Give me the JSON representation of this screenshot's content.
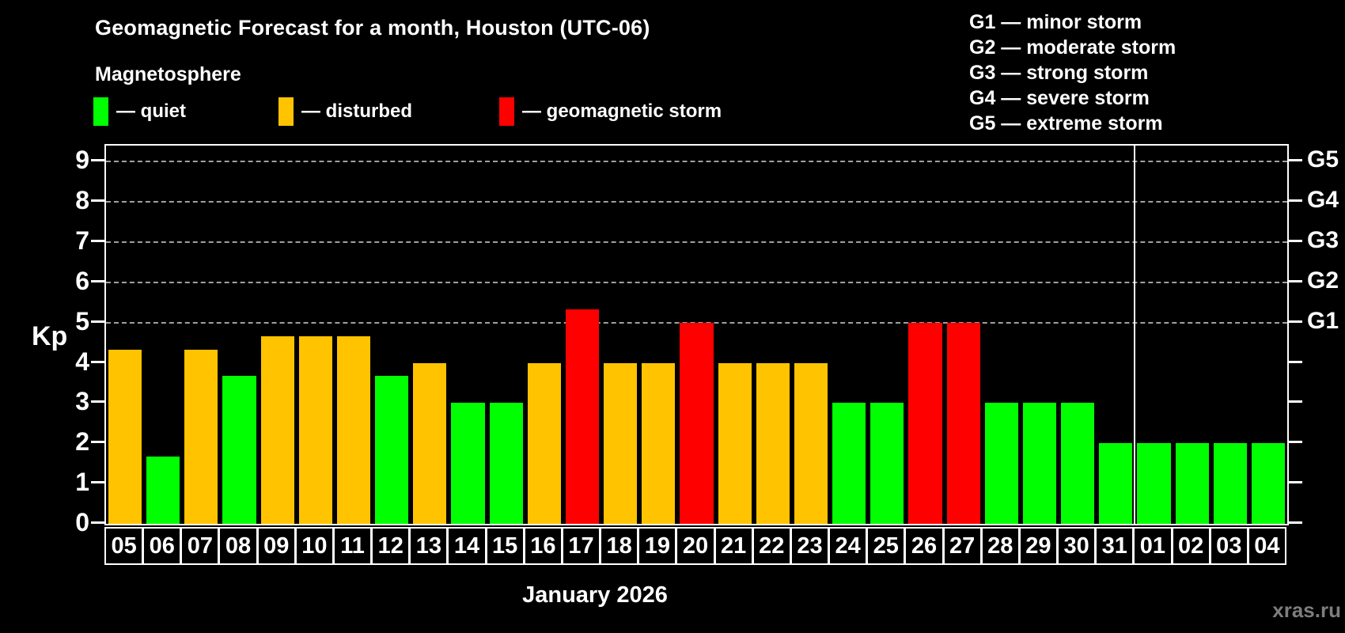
{
  "header": {
    "title": "Geomagnetic Forecast for a month, Houston (UTC-06)",
    "subtitle": "Magnetosphere"
  },
  "legend": [
    {
      "name": "quiet",
      "label": "— quiet",
      "color": "#00ff00"
    },
    {
      "name": "disturbed",
      "label": "— disturbed",
      "color": "#ffc300"
    },
    {
      "name": "storm",
      "label": "— geomagnetic storm",
      "color": "#ff0000"
    }
  ],
  "storm_scale_lines": [
    "G1 — minor storm",
    "G2 — moderate storm",
    "G3 — strong storm",
    "G4 — severe storm",
    "G5 — extreme storm"
  ],
  "colors": {
    "quiet": "#00ff00",
    "disturbed": "#ffc300",
    "storm": "#ff0000",
    "grid": "#a0a0a0",
    "axis": "#ffffff",
    "watermark": "#7d7d7d",
    "background": "#000000"
  },
  "watermark": "xras.ru",
  "chart_data": {
    "type": "bar",
    "title": "Geomagnetic Forecast for a month, Houston (UTC-06)",
    "xlabel": "January 2026",
    "ylabel": "Kp",
    "ylim": [
      0,
      9.4
    ],
    "yticks": [
      0,
      1,
      2,
      3,
      4,
      5,
      6,
      7,
      8,
      9
    ],
    "gridlines_at": [
      5,
      6,
      7,
      8,
      9
    ],
    "right_axis_labels": [
      {
        "kp": 5,
        "label": "G1"
      },
      {
        "kp": 6,
        "label": "G2"
      },
      {
        "kp": 7,
        "label": "G3"
      },
      {
        "kp": 8,
        "label": "G4"
      },
      {
        "kp": 9,
        "label": "G5"
      }
    ],
    "categories": [
      "05",
      "06",
      "07",
      "08",
      "09",
      "10",
      "11",
      "12",
      "13",
      "14",
      "15",
      "16",
      "17",
      "18",
      "19",
      "20",
      "21",
      "22",
      "23",
      "24",
      "25",
      "26",
      "27",
      "28",
      "29",
      "30",
      "31",
      "01",
      "02",
      "03",
      "04"
    ],
    "values": [
      4.33,
      1.67,
      4.33,
      3.67,
      4.67,
      4.67,
      4.67,
      3.67,
      4,
      3,
      3,
      4,
      5.33,
      4,
      4,
      5,
      4,
      4,
      4,
      3,
      3,
      5,
      5,
      3,
      3,
      3,
      2,
      2,
      2,
      2,
      2
    ],
    "levels": [
      "disturbed",
      "quiet",
      "disturbed",
      "quiet",
      "disturbed",
      "disturbed",
      "disturbed",
      "quiet",
      "disturbed",
      "quiet",
      "quiet",
      "disturbed",
      "storm",
      "disturbed",
      "disturbed",
      "storm",
      "disturbed",
      "disturbed",
      "disturbed",
      "quiet",
      "quiet",
      "storm",
      "storm",
      "quiet",
      "quiet",
      "quiet",
      "quiet",
      "quiet",
      "quiet",
      "quiet",
      "quiet"
    ],
    "month_separator_after_index": 26,
    "legend_position": "top-left",
    "grid": "dashed horizontal lines at Kp 5-9 only"
  }
}
